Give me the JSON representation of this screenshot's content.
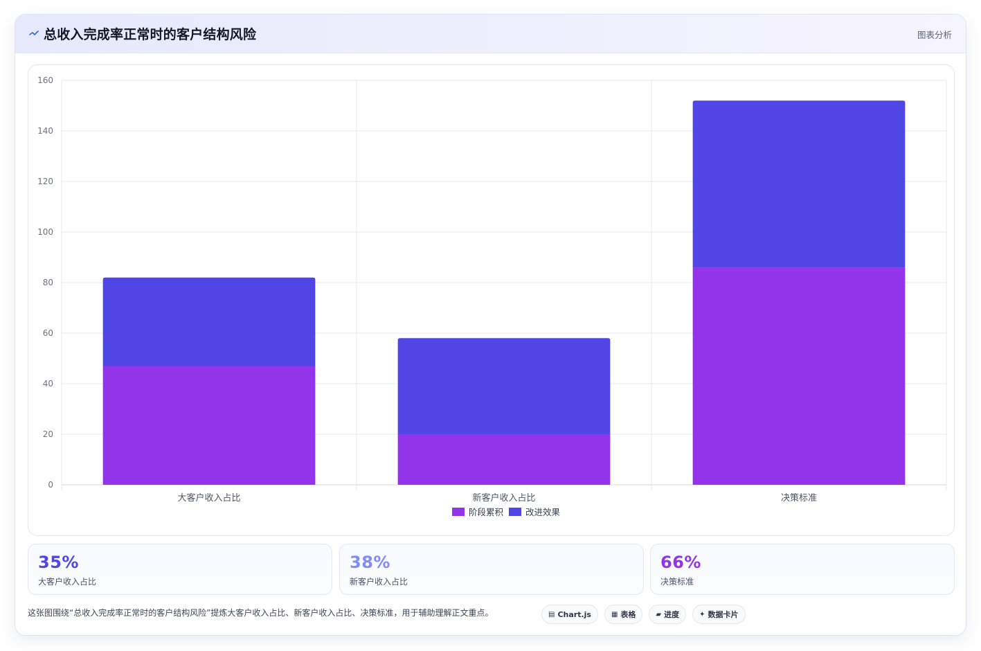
{
  "header": {
    "icon": "sparkline-icon",
    "title": "总收入完成率正常时的客户结构风险",
    "tag": "图表分析"
  },
  "chart_data": {
    "type": "bar",
    "stacked": true,
    "categories": [
      "大客户收入占比",
      "新客户收入占比",
      "决策标准"
    ],
    "series": [
      {
        "name": "阶段累积",
        "color": "#9333ea",
        "values": [
          47,
          20,
          86
        ]
      },
      {
        "name": "改进效果",
        "color": "#4f46e5",
        "values": [
          35,
          38,
          66
        ]
      }
    ],
    "ylim": [
      0,
      160
    ],
    "yticks": [
      0,
      20,
      40,
      60,
      80,
      100,
      120,
      140,
      160
    ],
    "grid": true,
    "legend": "bottom-center"
  },
  "kpis": [
    {
      "value": "35%",
      "label": "大客户收入占比",
      "color": "#4f46e5"
    },
    {
      "value": "38%",
      "label": "新客户收入占比",
      "color": "#818cf8"
    },
    {
      "value": "66%",
      "label": "决策标准",
      "color": "#9333ea"
    }
  ],
  "footer": {
    "note": "这张图围绕“总收入完成率正常时的客户结构风险”提炼大客户收入占比、新客户收入占比、决策标准，用于辅助理解正文重点。",
    "chips": [
      {
        "icon": "grid-icon",
        "glyph": "▤",
        "label": "Chart.js"
      },
      {
        "icon": "table-icon",
        "glyph": "▦",
        "label": "表格"
      },
      {
        "icon": "folder-icon",
        "glyph": "▰",
        "label": "进度"
      },
      {
        "icon": "sparkle-icon",
        "glyph": "✦",
        "label": "数据卡片"
      }
    ]
  }
}
